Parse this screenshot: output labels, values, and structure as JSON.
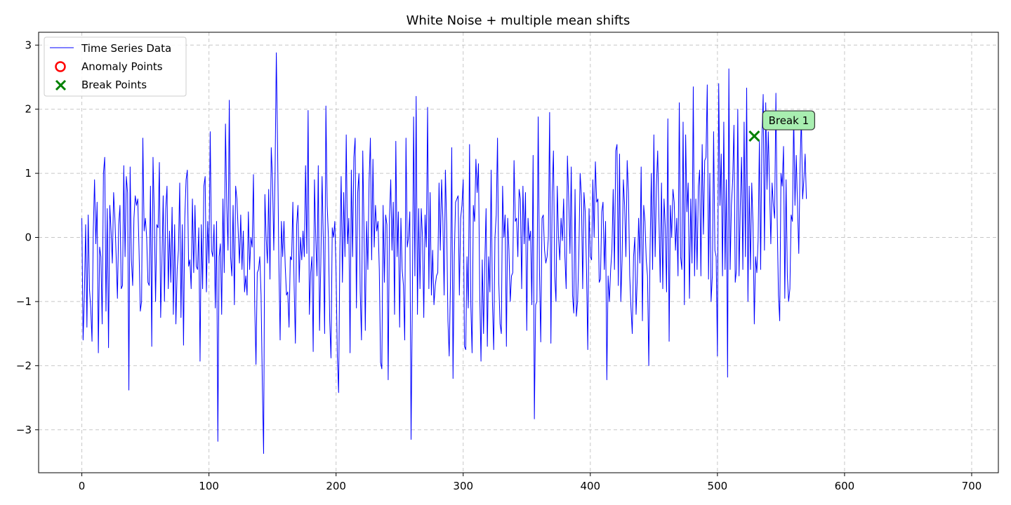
{
  "chart_data": {
    "type": "line",
    "title": "White Noise + multiple mean shifts",
    "xlabel": "",
    "ylabel": "",
    "xlim": [
      -34,
      721
    ],
    "ylim": [
      -3.67,
      3.2
    ],
    "xticks": [
      0,
      100,
      200,
      300,
      400,
      500,
      600,
      700
    ],
    "yticks": [
      -3,
      -2,
      -1,
      0,
      1,
      2,
      3
    ],
    "xtick_labels": [
      "0",
      "100",
      "200",
      "300",
      "400",
      "500",
      "600",
      "700"
    ],
    "ytick_labels": [
      "−3",
      "−2",
      "−1",
      "0",
      "1",
      "2",
      "3"
    ],
    "grid": true,
    "legend_position": "top-left",
    "colors": {
      "series": "#0000ff",
      "anomaly": "#ff0000",
      "break": "#008000",
      "annotation_bg": "#a8eeb0"
    },
    "series": [
      {
        "name": "Time Series Data",
        "x_start": 0,
        "x_step": 1,
        "values": [
          0.3,
          -1.6,
          -0.9,
          0.2,
          -1.4,
          0.35,
          -0.8,
          -1.1,
          -1.62,
          0.1,
          0.9,
          -0.1,
          0.55,
          -1.8,
          -0.15,
          -0.3,
          -1.35,
          1.0,
          1.25,
          -1.15,
          0.45,
          -1.72,
          0.5,
          0.1,
          -0.4,
          0.7,
          0.3,
          -0.3,
          -0.95,
          0.2,
          0.5,
          -0.8,
          -0.75,
          1.12,
          -0.3,
          0.95,
          0.7,
          -2.38,
          1.1,
          -0.35,
          -0.75,
          0.3,
          0.65,
          0.5,
          0.6,
          -0.2,
          -1.15,
          -1.0,
          1.55,
          0.1,
          0.3,
          0.0,
          -0.7,
          -0.75,
          0.8,
          -1.7,
          1.25,
          0.35,
          -1.0,
          0.2,
          0.15,
          1.17,
          -1.25,
          -0.4,
          0.65,
          -1.0,
          0.45,
          0.8,
          -0.8,
          0.1,
          -0.7,
          0.47,
          -1.2,
          0.2,
          -1.35,
          -0.5,
          -0.2,
          0.85,
          -1.25,
          0.2,
          -1.68,
          0.3,
          0.9,
          1.05,
          -0.45,
          -0.35,
          -0.8,
          0.6,
          -0.55,
          0.5,
          -0.45,
          -0.5,
          0.15,
          -1.93,
          0.2,
          -0.8,
          0.8,
          0.95,
          -0.85,
          0.25,
          -0.4,
          1.65,
          -0.2,
          -0.3,
          0.2,
          -1.1,
          0.25,
          -3.18,
          -0.3,
          -0.1,
          -1.2,
          0.6,
          -0.55,
          1.77,
          0.5,
          -0.2,
          2.14,
          -0.3,
          -0.6,
          0.5,
          -1.05,
          0.8,
          0.6,
          0.1,
          -0.4,
          0.35,
          -0.5,
          0.1,
          -0.85,
          -0.6,
          -0.9,
          0.4,
          -0.5,
          0.0,
          -0.15,
          0.98,
          -1.05,
          -1.98,
          -0.55,
          -0.5,
          -0.3,
          -0.9,
          -2.3,
          -3.37,
          0.67,
          0.0,
          -0.4,
          0.75,
          -0.65,
          1.4,
          0.9,
          -0.2,
          1.0,
          2.88,
          1.4,
          -0.4,
          -1.6,
          0.25,
          -0.3,
          0.25,
          -0.45,
          -0.9,
          -0.85,
          -1.4,
          -0.3,
          -0.35,
          0.55,
          -0.75,
          -1.65,
          0.2,
          0.5,
          -0.7,
          0.0,
          -0.35,
          0.1,
          -0.3,
          1.12,
          -0.25,
          1.98,
          -1.2,
          -0.55,
          -0.3,
          -1.78,
          0.9,
          0.0,
          -0.6,
          1.12,
          -1.45,
          -0.4,
          0.95,
          -0.1,
          -1.5,
          2.05,
          0.5,
          0.0,
          -1.3,
          -1.88,
          0.15,
          0.0,
          0.25,
          -0.55,
          -1.85,
          -2.42,
          -0.2,
          0.95,
          -0.7,
          0.7,
          -0.3,
          1.6,
          -0.1,
          0.3,
          -1.8,
          1.05,
          -0.3,
          1.25,
          1.55,
          -1.1,
          0.7,
          1.0,
          -0.85,
          -1.6,
          1.35,
          0.1,
          -1.45,
          0.25,
          -0.5,
          0.9,
          1.55,
          -0.35,
          1.22,
          -0.15,
          0.5,
          0.1,
          0.25,
          -0.5,
          -1.95,
          -2.05,
          0.5,
          -0.7,
          0.35,
          0.2,
          -2.22,
          0.3,
          0.9,
          -0.2,
          0.55,
          -1.2,
          1.5,
          -0.3,
          0.4,
          -1.4,
          0.3,
          -0.5,
          -0.75,
          -1.6,
          1.55,
          -0.15,
          0.0,
          0.4,
          -3.15,
          -1.0,
          1.88,
          -0.6,
          2.2,
          -1.2,
          0.45,
          -0.8,
          0.45,
          0.0,
          -1.25,
          0.35,
          -0.15,
          2.03,
          -0.8,
          0.7,
          -0.9,
          -0.2,
          -1.05,
          -0.75,
          -0.6,
          -0.55,
          0.85,
          -0.2,
          0.9,
          0.3,
          -0.9,
          1.05,
          0.2,
          -1.3,
          -1.85,
          -0.7,
          1.4,
          -2.2,
          -0.3,
          0.55,
          0.6,
          0.65,
          -0.9,
          0.3,
          0.5,
          0.9,
          -1.7,
          -1.75,
          -0.3,
          -1.1,
          1.45,
          -1.05,
          -1.8,
          0.5,
          0.25,
          1.22,
          0.7,
          1.15,
          -0.85,
          -1.93,
          -0.35,
          -1.5,
          -0.4,
          0.45,
          -1.7,
          -0.3,
          -0.85,
          1.05,
          -1.0,
          -1.75,
          0.0,
          0.35,
          1.55,
          -0.7,
          -1.35,
          -1.5,
          0.8,
          0.0,
          0.35,
          -1.7,
          0.3,
          -0.2,
          -1.0,
          -0.6,
          -0.55,
          1.2,
          0.25,
          0.3,
          -0.3,
          0.75,
          0.6,
          -0.8,
          0.8,
          -0.1,
          0.7,
          -1.45,
          0.3,
          -0.05,
          0.1,
          -1.05,
          1.28,
          -2.83,
          -1.05,
          -1.0,
          1.88,
          -0.5,
          -1.63,
          0.3,
          0.35,
          -0.2,
          -0.4,
          -0.3,
          0.0,
          1.95,
          -1.65,
          0.7,
          1.35,
          -0.6,
          -1.0,
          0.8,
          0.0,
          -0.35,
          0.3,
          -0.05,
          0.6,
          -0.3,
          -0.8,
          1.27,
          0.6,
          -0.25,
          1.1,
          -0.9,
          -1.18,
          0.75,
          -1.23,
          -1.0,
          -0.25,
          1.0,
          0.65,
          -0.8,
          0.7,
          0.4,
          -0.5,
          -1.75,
          0.45,
          -0.3,
          -0.35,
          0.9,
          0.0,
          1.18,
          0.55,
          0.6,
          -0.7,
          -0.65,
          0.4,
          0.55,
          -0.5,
          0.25,
          -2.22,
          -0.6,
          -1.0,
          -0.5,
          -0.2,
          0.75,
          -0.5,
          1.35,
          1.45,
          -0.75,
          1.3,
          -1.0,
          -0.35,
          0.9,
          0.5,
          -0.3,
          1.2,
          0.7,
          -0.6,
          -1.1,
          -1.5,
          -0.3,
          0.0,
          -1.2,
          -0.6,
          0.3,
          -0.4,
          1.1,
          -1.3,
          0.5,
          0.25,
          -0.35,
          -0.6,
          -2.0,
          -0.2,
          1.0,
          -0.5,
          1.6,
          -0.3,
          0.8,
          1.35,
          0.3,
          -0.7,
          0.85,
          -0.8,
          0.6,
          0.15,
          -0.85,
          1.85,
          -1.62,
          0.5,
          0.0,
          0.75,
          0.55,
          -0.2,
          0.3,
          -0.6,
          2.1,
          -0.3,
          -0.5,
          1.8,
          -1.05,
          1.6,
          0.4,
          0.85,
          -0.95,
          0.6,
          -0.4,
          2.35,
          -0.6,
          0.6,
          -0.5,
          0.8,
          1.05,
          -0.6,
          1.45,
          0.05,
          1.2,
          1.25,
          2.38,
          -0.65,
          1.0,
          -1.0,
          -0.6,
          1.65,
          -0.2,
          -0.3,
          -1.85,
          2.4,
          0.5,
          1.3,
          -0.6,
          1.8,
          -0.5,
          0.9,
          -2.18,
          2.63,
          -0.5,
          0.5,
          0.9,
          1.75,
          -0.7,
          -0.5,
          2.0,
          -0.6,
          0.5,
          1.25,
          -0.5,
          1.8,
          -0.3,
          2.33,
          -1.0,
          0.8,
          -0.5,
          0.85,
          0.2,
          -1.35,
          -0.3,
          -0.55,
          -0.05,
          1.5,
          -0.5,
          1.55,
          2.23,
          -0.2,
          2.1,
          0.75,
          1.65,
          0.8,
          -0.1,
          0.85,
          0.5,
          0.3,
          2.25,
          0.3,
          -0.9,
          -1.3,
          1.0,
          0.8,
          1.42,
          -0.95,
          0.9,
          -0.6,
          -1.0,
          -0.8,
          0.35,
          0.25,
          1.92,
          0.5,
          1.28,
          0.5,
          -0.25,
          1.1,
          1.9,
          0.6,
          0.9,
          1.3,
          0.6
        ]
      }
    ],
    "anomaly_points": [],
    "break_points": [
      {
        "x": 529,
        "y": 1.58,
        "label": "Break 1"
      }
    ],
    "legend": {
      "line_label": "Time Series Data",
      "anomaly_label": "Anomaly Points",
      "break_label": "Break Points"
    }
  }
}
